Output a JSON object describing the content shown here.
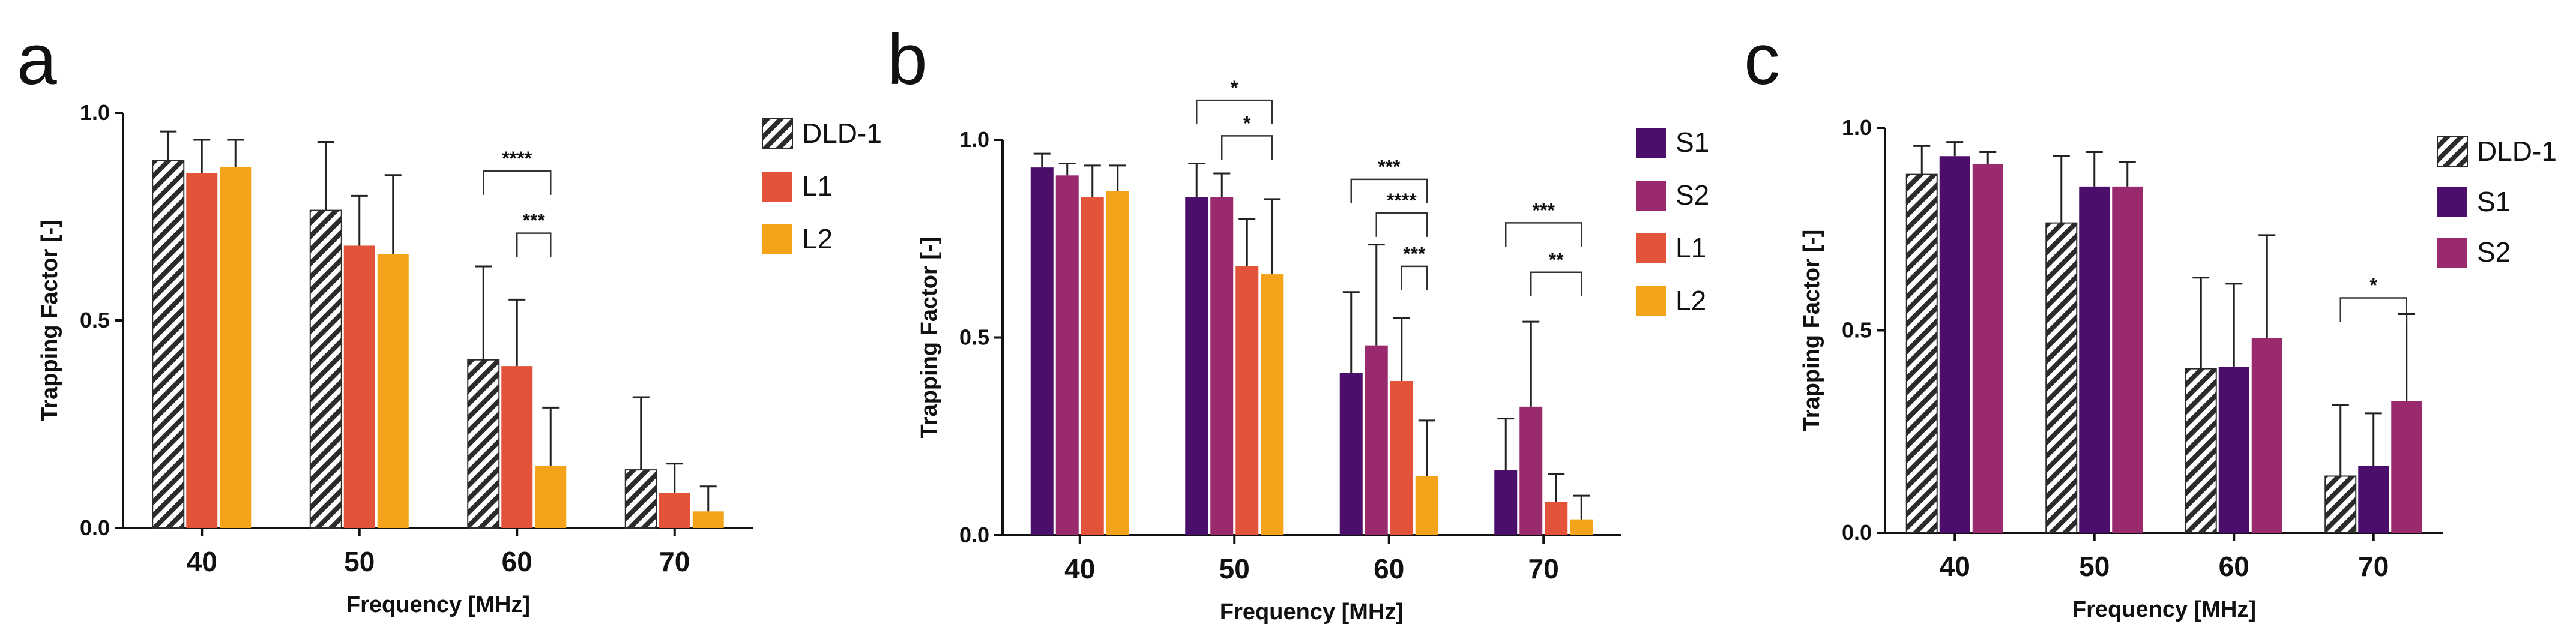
{
  "colors": {
    "DLD-1": "#2b2b2b",
    "S1": "#4b0e6b",
    "S2": "#9a2a6e",
    "L1": "#e2533a",
    "L2": "#f4a31b"
  },
  "chart_data": [
    {
      "type": "bar",
      "panel_letter": "a",
      "title": "",
      "xlabel": "Frequency [MHz]",
      "ylabel": "Trapping Factor [-]",
      "ylim": [
        0,
        1
      ],
      "yticks": [
        "0.0",
        "0.5",
        "1.0"
      ],
      "categories": [
        "40",
        "50",
        "60",
        "70"
      ],
      "legend_position": "top-right",
      "series": [
        {
          "name": "DLD-1",
          "hatched": true,
          "values": [
            0.885,
            0.765,
            0.405,
            0.14
          ],
          "errors": [
            0.07,
            0.165,
            0.225,
            0.175
          ]
        },
        {
          "name": "L1",
          "hatched": false,
          "values": [
            0.855,
            0.68,
            0.39,
            0.085
          ],
          "errors": [
            0.08,
            0.12,
            0.16,
            0.07
          ]
        },
        {
          "name": "L2",
          "hatched": false,
          "values": [
            0.87,
            0.66,
            0.15,
            0.04
          ],
          "errors": [
            0.065,
            0.19,
            0.14,
            0.06
          ]
        }
      ],
      "significance": [
        {
          "category": "60",
          "from_series": "DLD-1",
          "to_series": "L2",
          "label": "****",
          "level": 0.86
        },
        {
          "category": "60",
          "from_series": "L1",
          "to_series": "L2",
          "label": "***",
          "level": 0.71
        }
      ]
    },
    {
      "type": "bar",
      "panel_letter": "b",
      "title": "",
      "xlabel": "Frequency [MHz]",
      "ylabel": "Trapping Factor [-]",
      "ylim": [
        0,
        1
      ],
      "yticks": [
        "0.0",
        "0.5",
        "1.0"
      ],
      "categories": [
        "40",
        "50",
        "60",
        "70"
      ],
      "legend_position": "top-right",
      "series": [
        {
          "name": "S1",
          "hatched": false,
          "values": [
            0.93,
            0.855,
            0.41,
            0.165
          ],
          "errors": [
            0.035,
            0.085,
            0.205,
            0.13
          ]
        },
        {
          "name": "S2",
          "hatched": false,
          "values": [
            0.91,
            0.855,
            0.48,
            0.325
          ],
          "errors": [
            0.03,
            0.06,
            0.255,
            0.215
          ]
        },
        {
          "name": "L1",
          "hatched": false,
          "values": [
            0.855,
            0.68,
            0.39,
            0.085
          ],
          "errors": [
            0.08,
            0.12,
            0.16,
            0.07
          ]
        },
        {
          "name": "L2",
          "hatched": false,
          "values": [
            0.87,
            0.66,
            0.15,
            0.04
          ],
          "errors": [
            0.065,
            0.19,
            0.14,
            0.06
          ]
        }
      ],
      "significance": [
        {
          "category": "50",
          "from_series": "S1",
          "to_series": "L2",
          "label": "*",
          "level": 1.1
        },
        {
          "category": "50",
          "from_series": "S2",
          "to_series": "L2",
          "label": "*",
          "level": 1.01
        },
        {
          "category": "60",
          "from_series": "S1",
          "to_series": "L2",
          "label": "***",
          "level": 0.9
        },
        {
          "category": "60",
          "from_series": "S2",
          "to_series": "L2",
          "label": "****",
          "level": 0.815
        },
        {
          "category": "60",
          "from_series": "L1",
          "to_series": "L2",
          "label": "***",
          "level": 0.68
        },
        {
          "category": "70",
          "from_series": "S1",
          "to_series": "L2",
          "label": "***",
          "level": 0.79
        },
        {
          "category": "70",
          "from_series": "S2",
          "to_series": "L2",
          "label": "**",
          "level": 0.665
        }
      ]
    },
    {
      "type": "bar",
      "panel_letter": "c",
      "title": "",
      "xlabel": "Frequency [MHz]",
      "ylabel": "Trapping Factor [-]",
      "ylim": [
        0,
        1
      ],
      "yticks": [
        "0.0",
        "0.5",
        "1.0"
      ],
      "categories": [
        "40",
        "50",
        "60",
        "70"
      ],
      "legend_position": "top-right",
      "series": [
        {
          "name": "DLD-1",
          "hatched": true,
          "values": [
            0.885,
            0.765,
            0.405,
            0.14
          ],
          "errors": [
            0.07,
            0.165,
            0.225,
            0.175
          ]
        },
        {
          "name": "S1",
          "hatched": false,
          "values": [
            0.93,
            0.855,
            0.41,
            0.165
          ],
          "errors": [
            0.035,
            0.085,
            0.205,
            0.13
          ]
        },
        {
          "name": "S2",
          "hatched": false,
          "values": [
            0.91,
            0.855,
            0.48,
            0.325
          ],
          "errors": [
            0.03,
            0.06,
            0.255,
            0.215
          ]
        }
      ],
      "significance": [
        {
          "category": "70",
          "from_series": "DLD-1",
          "to_series": "S2",
          "label": "*",
          "level": 0.58
        }
      ]
    }
  ]
}
